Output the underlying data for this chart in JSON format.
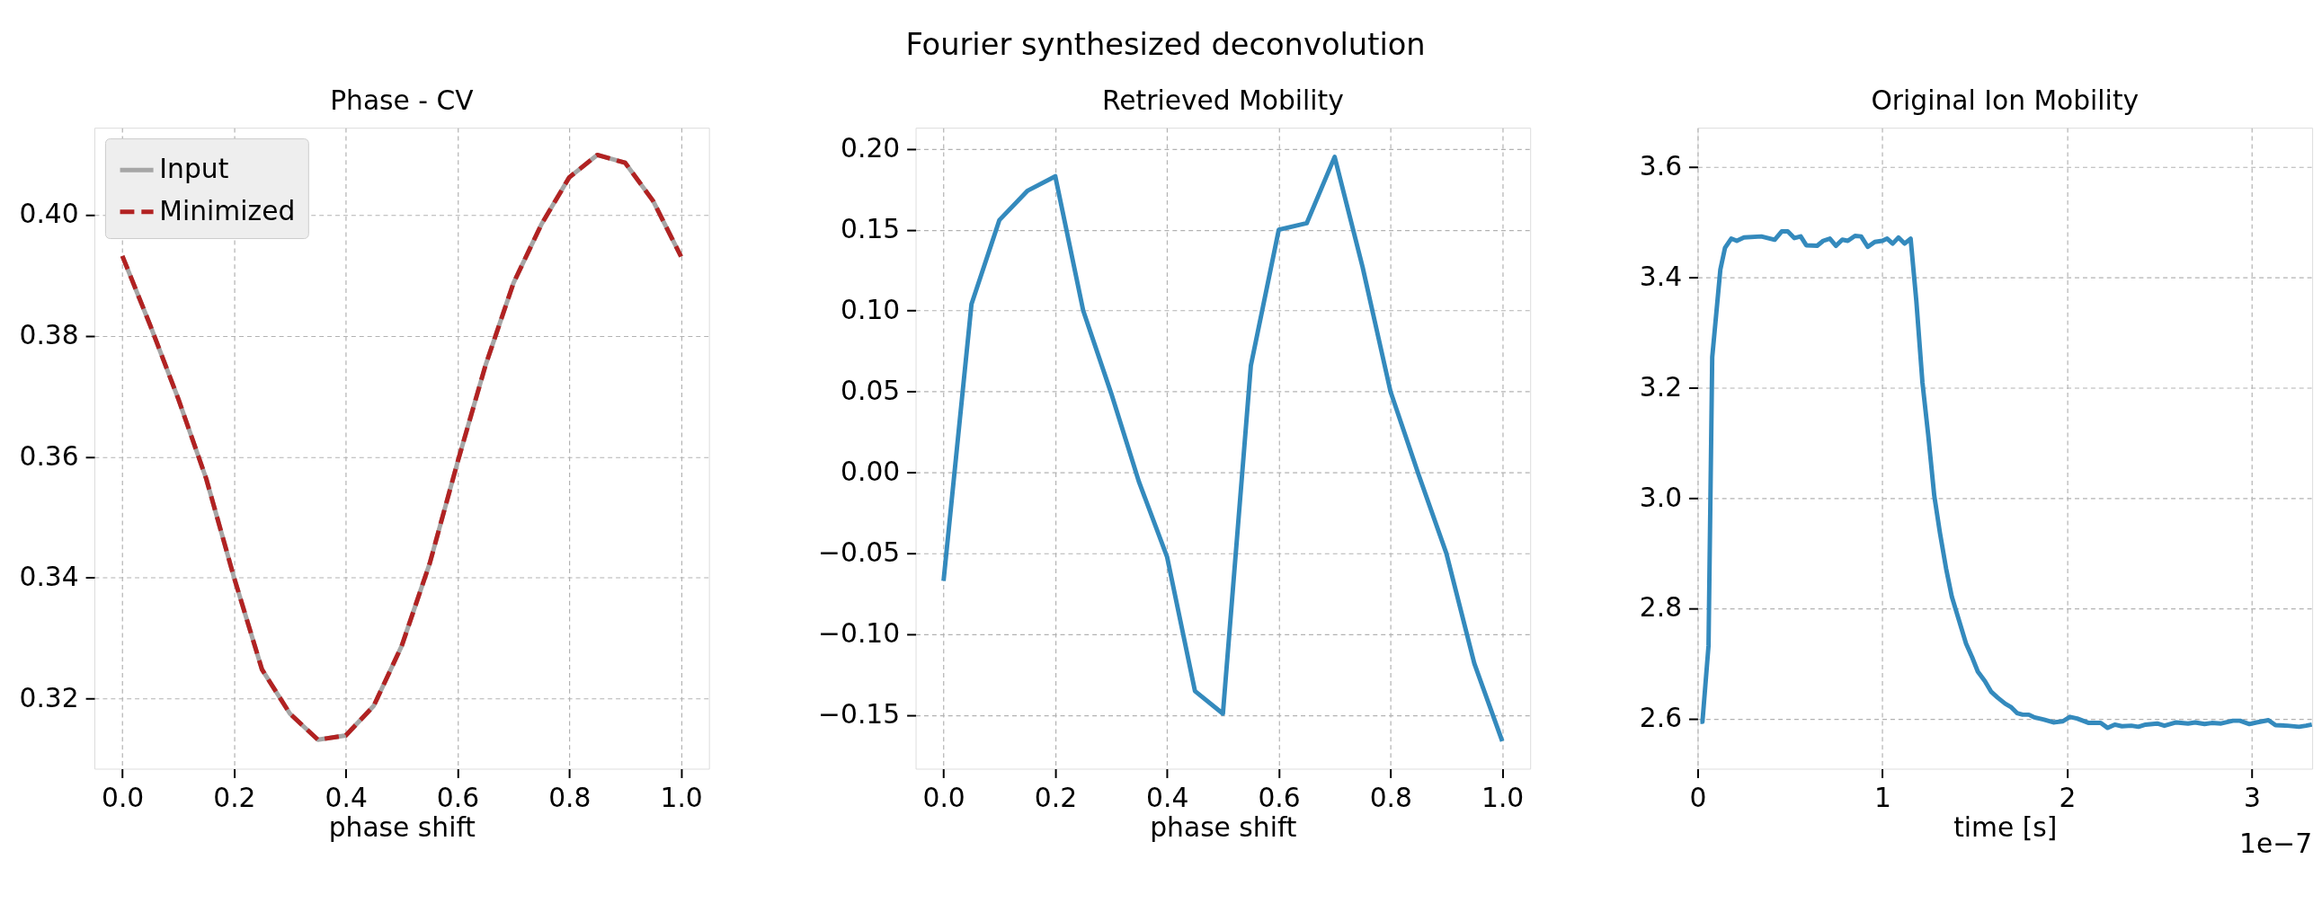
{
  "chart_data": [
    {
      "type": "line",
      "title": "Phase - CV",
      "xlabel": "phase shift",
      "annotations": [
        "Fourier synthesized deconvolution"
      ],
      "x": [
        0,
        0.05,
        0.1,
        0.15,
        0.2,
        0.25,
        0.3,
        0.35,
        0.4,
        0.45,
        0.5,
        0.55,
        0.6,
        0.65,
        0.7,
        0.75,
        0.8,
        0.85,
        0.9,
        0.95,
        1.0
      ],
      "series": [
        {
          "name": "Input",
          "color": "#a6a6a6",
          "line_style": "solid",
          "values": [
            0.3932,
            0.3817,
            0.3696,
            0.3564,
            0.34,
            0.3248,
            0.3175,
            0.3132,
            0.3139,
            0.3188,
            0.3287,
            0.3423,
            0.3591,
            0.3751,
            0.3887,
            0.3984,
            0.4062,
            0.4099,
            0.4086,
            0.4023,
            0.3931
          ]
        },
        {
          "name": "Minimized",
          "color": "#b22222",
          "line_style": "dashed",
          "values": [
            0.3932,
            0.3817,
            0.3696,
            0.3564,
            0.34,
            0.3248,
            0.3175,
            0.3132,
            0.3139,
            0.3188,
            0.3287,
            0.3423,
            0.3591,
            0.3751,
            0.3887,
            0.3984,
            0.4062,
            0.4099,
            0.4086,
            0.4023,
            0.3931
          ]
        }
      ],
      "xlim": [
        -0.05,
        1.05
      ],
      "ylim": [
        0.3084,
        0.4144
      ],
      "xticks": [
        {
          "value": 0,
          "label": "0.0"
        },
        {
          "value": 0.2,
          "label": "0.2"
        },
        {
          "value": 0.4,
          "label": "0.4"
        },
        {
          "value": 0.6,
          "label": "0.6"
        },
        {
          "value": 0.8,
          "label": "0.8"
        },
        {
          "value": 1.0,
          "label": "1.0"
        }
      ],
      "yticks": [
        {
          "value": 0.32,
          "label": "0.32"
        },
        {
          "value": 0.34,
          "label": "0.34"
        },
        {
          "value": 0.36,
          "label": "0.36"
        },
        {
          "value": 0.38,
          "label": "0.38"
        },
        {
          "value": 0.4,
          "label": "0.40"
        }
      ],
      "grid": true,
      "legend": "top left",
      "marker": "none"
    },
    {
      "type": "line",
      "title": "Retrieved Mobility",
      "xlabel": "phase shift",
      "x": [
        0,
        0.05,
        0.1,
        0.15,
        0.2,
        0.25,
        0.3,
        0.35,
        0.4,
        0.45,
        0.5,
        0.55,
        0.6,
        0.65,
        0.7,
        0.75,
        0.8,
        0.85,
        0.9,
        0.95,
        1.0
      ],
      "series": [
        {
          "color": "#348abd",
          "line_style": "solid",
          "values": [
            -0.067,
            0.104,
            0.156,
            0.174,
            0.183,
            0.1,
            0.049,
            -0.006,
            -0.052,
            -0.135,
            -0.149,
            0.066,
            0.15,
            0.154,
            0.195,
            0.127,
            0.05,
            -0.001,
            -0.05,
            -0.118,
            -0.166
          ]
        }
      ],
      "xlim": [
        -0.05,
        1.05
      ],
      "ylim": [
        -0.183,
        0.213
      ],
      "xticks": [
        {
          "value": 0,
          "label": "0.0"
        },
        {
          "value": 0.2,
          "label": "0.2"
        },
        {
          "value": 0.4,
          "label": "0.4"
        },
        {
          "value": 0.6,
          "label": "0.6"
        },
        {
          "value": 0.8,
          "label": "0.8"
        },
        {
          "value": 1.0,
          "label": "1.0"
        }
      ],
      "yticks": [
        {
          "value": -0.15,
          "label": "−0.15"
        },
        {
          "value": -0.1,
          "label": "−0.10"
        },
        {
          "value": -0.05,
          "label": "−0.05"
        },
        {
          "value": 0,
          "label": "0.00"
        },
        {
          "value": 0.05,
          "label": "0.05"
        },
        {
          "value": 0.1,
          "label": "0.10"
        },
        {
          "value": 0.15,
          "label": "0.15"
        },
        {
          "value": 0.2,
          "label": "0.20"
        }
      ],
      "grid": true,
      "marker": "none"
    },
    {
      "type": "line",
      "title": "Original Ion Mobility",
      "xlabel": "time [s]",
      "annotations": [
        "1e−7"
      ],
      "series": [
        {
          "color": "#348abd",
          "line_style": "solid",
          "x": [
            0.015,
            0.026,
            0.059,
            0.079,
            0.123,
            0.148,
            0.182,
            0.212,
            0.251,
            0.345,
            0.417,
            0.455,
            0.488,
            0.524,
            0.558,
            0.588,
            0.647,
            0.68,
            0.716,
            0.749,
            0.783,
            0.813,
            0.852,
            0.885,
            0.921,
            0.959,
            1.0,
            1.026,
            1.056,
            1.087,
            1.12,
            1.153,
            1.184,
            1.217,
            1.248,
            1.281,
            1.312,
            1.345,
            1.376,
            1.414,
            1.453,
            1.486,
            1.517,
            1.555,
            1.588,
            1.624,
            1.665,
            1.696,
            1.729,
            1.76,
            1.793,
            1.824,
            1.875,
            1.926,
            1.977,
            2.015,
            2.054,
            2.118,
            2.182,
            2.22,
            2.258,
            2.297,
            2.348,
            2.386,
            2.425,
            2.488,
            2.527,
            2.591,
            2.655,
            2.693,
            2.744,
            2.783,
            2.834,
            2.898,
            2.936,
            2.987,
            3.026,
            3.09,
            3.128,
            3.192,
            3.256,
            3.294,
            3.325
          ],
          "values": [
            2.594,
            2.594,
            2.732,
            3.255,
            3.414,
            3.453,
            3.47,
            3.466,
            3.472,
            3.474,
            3.468,
            3.483,
            3.483,
            3.471,
            3.474,
            3.458,
            3.457,
            3.466,
            3.47,
            3.457,
            3.468,
            3.466,
            3.475,
            3.474,
            3.455,
            3.464,
            3.466,
            3.47,
            3.461,
            3.472,
            3.461,
            3.47,
            3.357,
            3.209,
            3.115,
            3.004,
            2.936,
            2.872,
            2.821,
            2.779,
            2.736,
            2.711,
            2.685,
            2.668,
            2.649,
            2.638,
            2.627,
            2.621,
            2.61,
            2.607,
            2.607,
            2.602,
            2.598,
            2.593,
            2.595,
            2.603,
            2.6,
            2.592,
            2.592,
            2.583,
            2.589,
            2.586,
            2.587,
            2.585,
            2.589,
            2.591,
            2.587,
            2.593,
            2.591,
            2.593,
            2.59,
            2.592,
            2.591,
            2.596,
            2.596,
            2.59,
            2.593,
            2.597,
            2.588,
            2.587,
            2.585,
            2.587,
            2.589
          ]
        }
      ],
      "xlim": [
        0,
        3.327
      ],
      "ylim": [
        2.509,
        3.671
      ],
      "xticks": [
        0,
        1,
        2,
        3
      ],
      "yticks": [
        {
          "value": 2.6,
          "label": "2.6"
        },
        {
          "value": 2.8,
          "label": "2.8"
        },
        {
          "value": 3.0,
          "label": "3.0"
        },
        {
          "value": 3.2,
          "label": "3.2"
        },
        {
          "value": 3.4,
          "label": "3.4"
        },
        {
          "value": 3.6,
          "label": "3.6"
        }
      ],
      "grid": true,
      "marker": "none"
    }
  ]
}
